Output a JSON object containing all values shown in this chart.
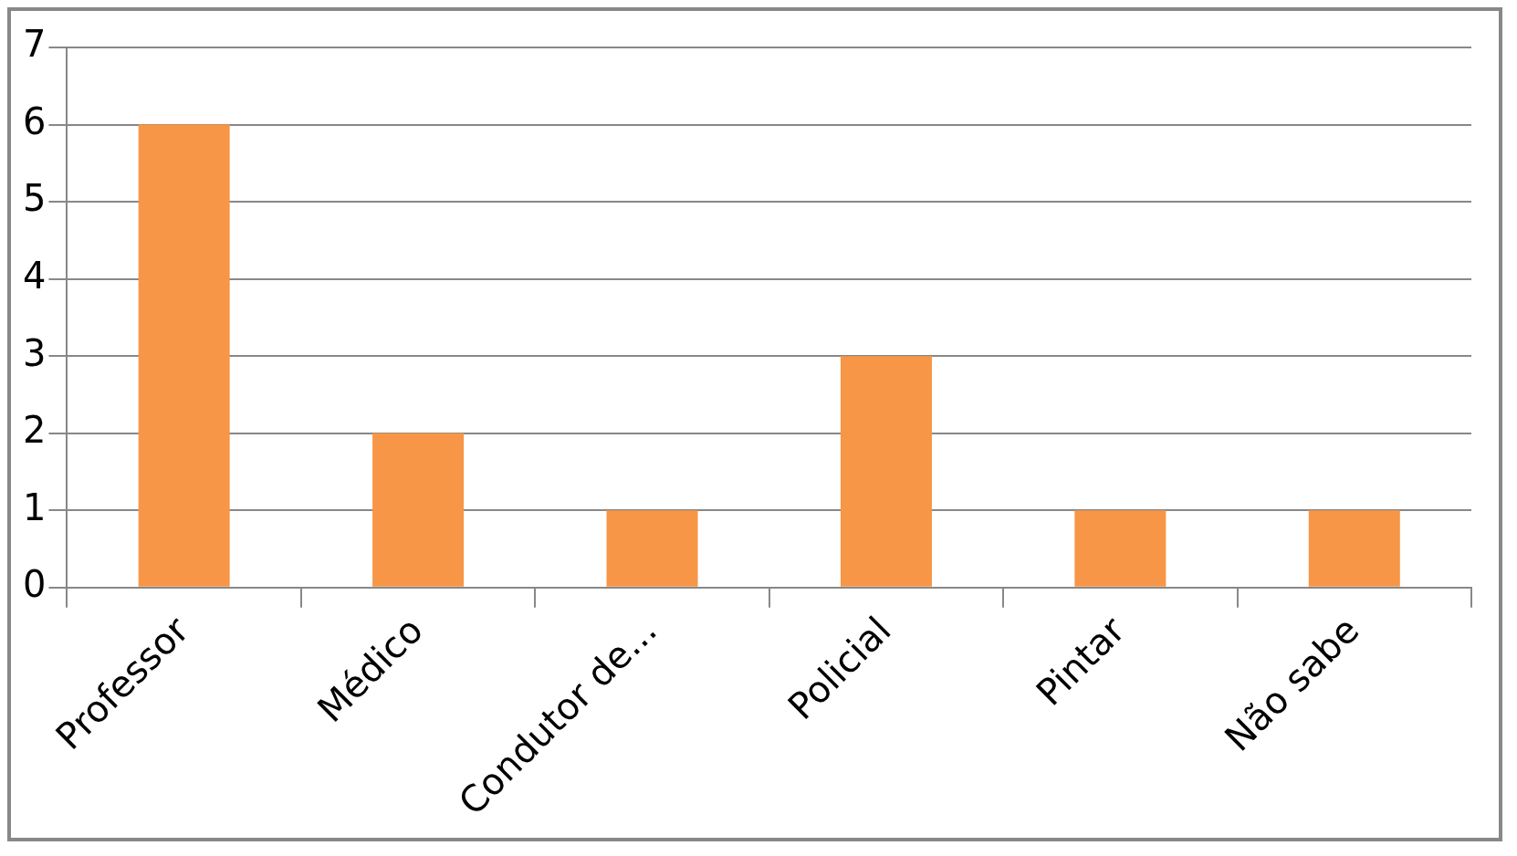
{
  "chart_data": {
    "type": "bar",
    "categories": [
      "Professor",
      "Médico",
      "Condutor de...",
      "Policial",
      "Pintar",
      "Não sabe"
    ],
    "values": [
      6,
      2,
      1,
      3,
      1,
      1
    ],
    "color": "#f79646",
    "ylim": [
      0,
      7
    ],
    "yticks": [
      0,
      1,
      2,
      3,
      4,
      5,
      6,
      7
    ],
    "grid": "y",
    "legend": false
  }
}
